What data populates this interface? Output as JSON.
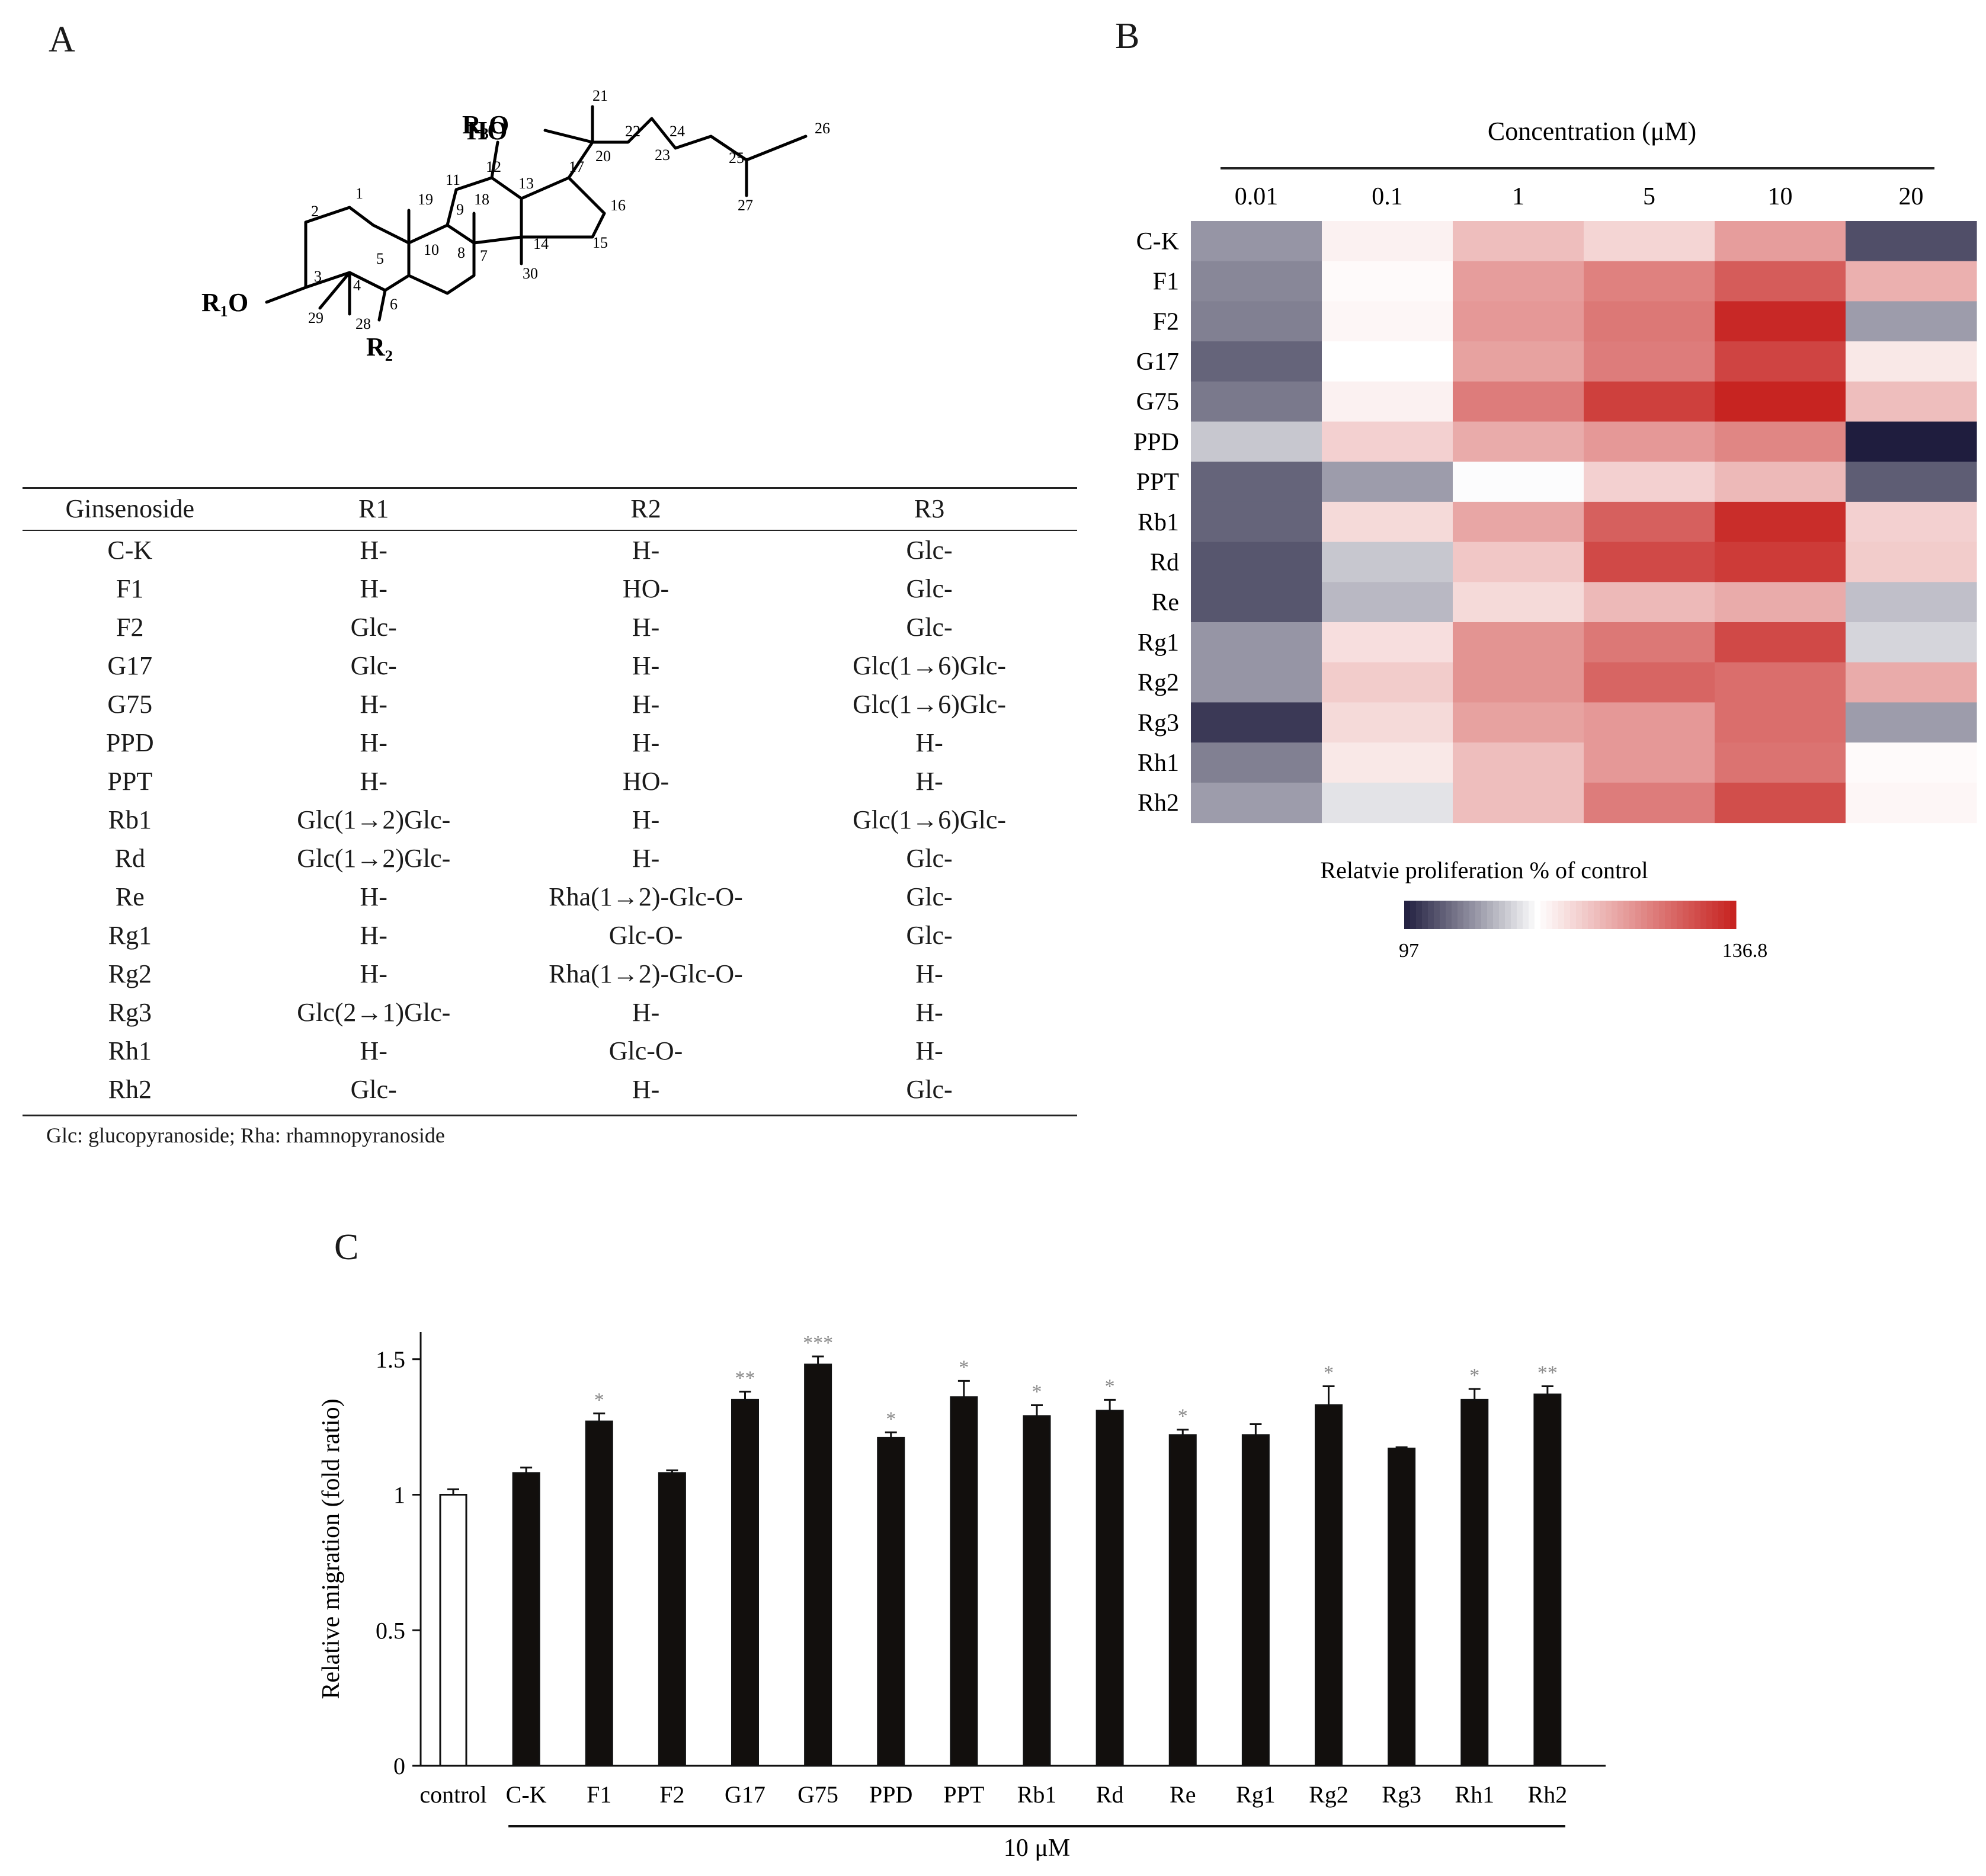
{
  "panels": {
    "a": "A",
    "b": "B",
    "c": "C"
  },
  "structure": {
    "substituents": [
      "R₁O",
      "R₂",
      "R₃O",
      "HO"
    ],
    "carbon_numbers": [
      "1",
      "2",
      "3",
      "4",
      "5",
      "6",
      "7",
      "8",
      "9",
      "10",
      "11",
      "12",
      "13",
      "14",
      "15",
      "16",
      "17",
      "18",
      "19",
      "20",
      "21",
      "22",
      "23",
      "24",
      "25",
      "26",
      "27",
      "28",
      "29",
      "30"
    ]
  },
  "table": {
    "headers": [
      "Ginsenoside",
      "R1",
      "R2",
      "R3"
    ],
    "rows": [
      [
        "C-K",
        "H-",
        "H-",
        "Glc-"
      ],
      [
        "F1",
        "H-",
        "HO-",
        "Glc-"
      ],
      [
        "F2",
        "Glc-",
        "H-",
        "Glc-"
      ],
      [
        "G17",
        "Glc-",
        "H-",
        "Glc(1→6)Glc-"
      ],
      [
        "G75",
        "H-",
        "H-",
        "Glc(1→6)Glc-"
      ],
      [
        "PPD",
        "H-",
        "H-",
        "H-"
      ],
      [
        "PPT",
        "H-",
        "HO-",
        "H-"
      ],
      [
        "Rb1",
        "Glc(1→2)Glc-",
        "H-",
        "Glc(1→6)Glc-"
      ],
      [
        "Rd",
        "Glc(1→2)Glc-",
        "H-",
        "Glc-"
      ],
      [
        "Re",
        "H-",
        "Rha(1→2)-Glc-O-",
        "Glc-"
      ],
      [
        "Rg1",
        "H-",
        "Glc-O-",
        "Glc-"
      ],
      [
        "Rg2",
        "H-",
        "Rha(1→2)-Glc-O-",
        "H-"
      ],
      [
        "Rg3",
        "Glc(2→1)Glc-",
        "H-",
        "H-"
      ],
      [
        "Rh1",
        "H-",
        "Glc-O-",
        "H-"
      ],
      [
        "Rh2",
        "Glc-",
        "H-",
        "Glc-"
      ]
    ],
    "footnote": "Glc: glucopyranoside; Rha: rhamnopyranoside"
  },
  "chart_data": [
    {
      "type": "heatmap",
      "title": "Concentration (μM)",
      "columns": [
        "0.01",
        "0.1",
        "1",
        "5",
        "10",
        "20"
      ],
      "rows": [
        "C-K",
        "F1",
        "F2",
        "G17",
        "G75",
        "PPD",
        "PPT",
        "Rb1",
        "Rd",
        "Re",
        "Rg1",
        "Rg2",
        "Rg3",
        "Rh1",
        "Rh2"
      ],
      "values": [
        [
          105.5,
          114.5,
          120.0,
          117.5,
          123.5,
          100.5
        ],
        [
          104.5,
          113.5,
          123.5,
          126.5,
          130.5,
          121.5
        ],
        [
          104.0,
          114.0,
          124.0,
          127.5,
          136.0,
          106.0
        ],
        [
          102.0,
          113.0,
          123.0,
          127.0,
          133.0,
          115.5
        ],
        [
          103.5,
          114.5,
          127.0,
          133.5,
          136.5,
          120.0
        ],
        [
          109.0,
          118.0,
          122.0,
          124.0,
          126.0,
          97.0
        ],
        [
          102.0,
          106.0,
          112.8,
          118.0,
          120.5,
          101.5
        ],
        [
          102.0,
          117.0,
          122.5,
          130.0,
          135.5,
          118.0
        ],
        [
          101.0,
          109.0,
          119.0,
          132.5,
          134.0,
          118.5
        ],
        [
          101.0,
          108.0,
          117.0,
          120.5,
          122.0,
          108.5
        ],
        [
          105.5,
          116.5,
          124.5,
          127.5,
          132.5,
          110.0
        ],
        [
          105.5,
          118.5,
          124.5,
          129.5,
          128.5,
          122.0
        ],
        [
          99.0,
          117.0,
          123.0,
          124.0,
          128.5,
          106.0
        ],
        [
          104.0,
          115.5,
          120.0,
          124.0,
          128.0,
          113.5
        ],
        [
          106.0,
          111.0,
          120.0,
          127.0,
          132.0,
          114.0
        ]
      ],
      "colorbar_label": "Relatvie  proliferation % of control",
      "colorbar_min": "97",
      "colorbar_max": "136.8",
      "vmin": 97,
      "vmax": 136.8,
      "mid": 113,
      "colors": {
        "low": "#1f1d3e",
        "mid": "#ffffff",
        "high": "#c6211e"
      }
    },
    {
      "type": "bar",
      "categories": [
        "control",
        "C-K",
        "F1",
        "F2",
        "G17",
        "G75",
        "PPD",
        "PPT",
        "Rb1",
        "Rd",
        "Re",
        "Rg1",
        "Rg2",
        "Rg3",
        "Rh1",
        "Rh2"
      ],
      "values": [
        1.0,
        1.08,
        1.27,
        1.08,
        1.35,
        1.48,
        1.21,
        1.36,
        1.29,
        1.31,
        1.22,
        1.22,
        1.33,
        1.17,
        1.35,
        1.37
      ],
      "errors": [
        0.02,
        0.02,
        0.03,
        0.01,
        0.03,
        0.03,
        0.02,
        0.06,
        0.04,
        0.04,
        0.02,
        0.04,
        0.07,
        0.005,
        0.04,
        0.03
      ],
      "significance": [
        "",
        "",
        "*",
        "",
        "**",
        "***",
        "*",
        "*",
        "*",
        "*",
        "*",
        "",
        "*",
        "",
        "*",
        "**"
      ],
      "ylabel": "Relative migration (fold ratio)",
      "xlabel": "10 μM",
      "yticks": [
        "0",
        "0.5",
        "1",
        "1.5"
      ],
      "ylim": [
        0,
        1.6
      ],
      "colors": {
        "control": "#ffffff",
        "treated": "#120f0d",
        "stars": "#8a8a8a"
      }
    }
  ]
}
